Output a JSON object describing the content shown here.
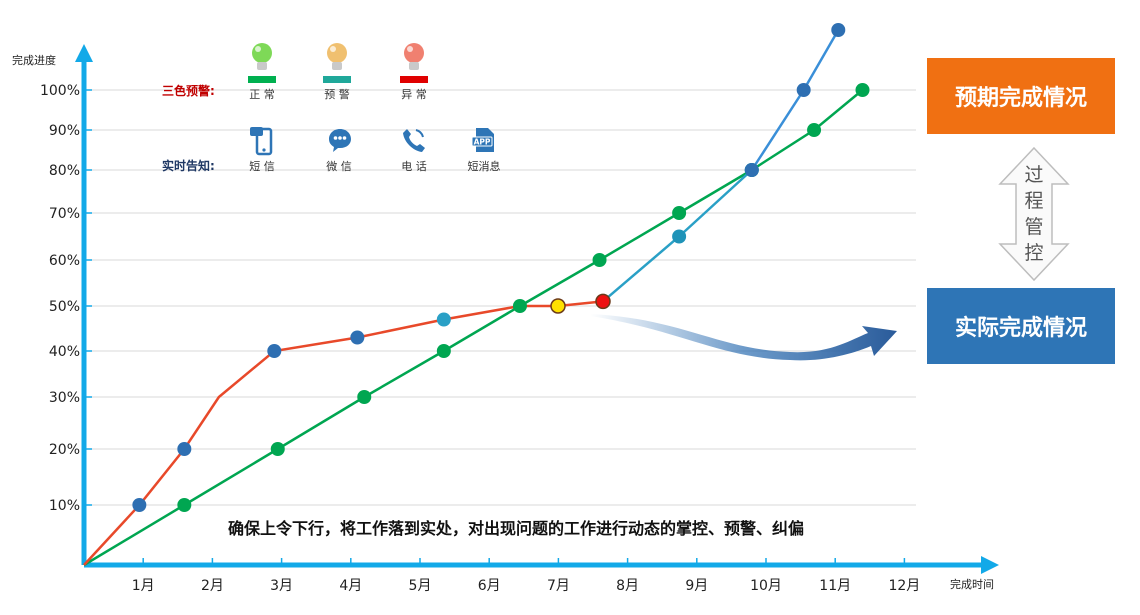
{
  "chart_data": {
    "type": "line",
    "ylabel": "完成进度",
    "xlabel": "完成时间",
    "x_ticks": [
      "1月",
      "2月",
      "3月",
      "4月",
      "5月",
      "6月",
      "7月",
      "8月",
      "9月",
      "10月",
      "11月",
      "12月"
    ],
    "y_ticks": [
      "10%",
      "20%",
      "30%",
      "40%",
      "50%",
      "60%",
      "70%",
      "80%",
      "90%",
      "100%"
    ],
    "ylim": [
      0,
      105
    ],
    "xlim": [
      0,
      12.4
    ],
    "grid": true,
    "series": [
      {
        "name": "预期完成情况",
        "color": "#00a651",
        "points": [
          [
            0,
            0
          ],
          [
            1.45,
            10
          ],
          [
            2.8,
            20
          ],
          [
            4.05,
            30
          ],
          [
            5.2,
            40
          ],
          [
            6.3,
            50
          ],
          [
            7.45,
            60
          ],
          [
            8.6,
            70
          ],
          [
            9.65,
            80
          ],
          [
            10.55,
            90
          ],
          [
            11.25,
            100
          ]
        ]
      },
      {
        "name": "实际完成情况",
        "color": "#e8492a",
        "points": [
          [
            0,
            0
          ],
          [
            0.8,
            10
          ],
          [
            1.45,
            20
          ],
          [
            1.95,
            30
          ],
          [
            2.75,
            40
          ],
          [
            3.95,
            43
          ],
          [
            5.2,
            47
          ],
          [
            6.3,
            50
          ],
          [
            6.85,
            50
          ],
          [
            7.5,
            51
          ]
        ]
      },
      {
        "name": "",
        "color": "#2aa0c6",
        "points": [
          [
            7.5,
            51
          ],
          [
            8.6,
            65
          ],
          [
            9.65,
            80
          ]
        ]
      },
      {
        "name": "",
        "color": "#3a8fd8",
        "points": [
          [
            9.65,
            80
          ],
          [
            10.4,
            100
          ],
          [
            10.9,
            115
          ]
        ]
      }
    ],
    "warning_points": [
      {
        "x": 6.85,
        "y": 50,
        "color": "#ffe100"
      },
      {
        "x": 7.5,
        "y": 51,
        "color": "#ee1111"
      }
    ],
    "annotation": "确保上令下行，将工作落到实处，对出现问题的工作进行动态的掌控、预警、纠偏"
  },
  "legend": {
    "warning_title": "三色预警:",
    "warning_items": [
      {
        "icon": "green-bulb-icon",
        "bulb": "#7ed957",
        "bar": "#00b050",
        "label": "正 常"
      },
      {
        "icon": "orange-bulb-icon",
        "bulb": "#f0c070",
        "bar": "#1fa89a",
        "label": "预 警"
      },
      {
        "icon": "red-bulb-icon",
        "bulb": "#f08070",
        "bar": "#e00000",
        "label": "异 常"
      }
    ],
    "notify_title": "实时告知:",
    "notify_items": [
      {
        "icon": "phone-sms-icon",
        "label": "短 信"
      },
      {
        "icon": "wechat-icon",
        "label": "微 信"
      },
      {
        "icon": "telephone-icon",
        "label": "电 话"
      },
      {
        "icon": "app-icon",
        "label": "短消息",
        "badge": "APP"
      }
    ]
  },
  "boxes": {
    "expected": {
      "label": "预期完成情况",
      "color": "#f07012"
    },
    "actual": {
      "label": "实际完成情况",
      "color": "#2e75b6"
    },
    "control": [
      "过",
      "程",
      "管",
      "控"
    ]
  }
}
